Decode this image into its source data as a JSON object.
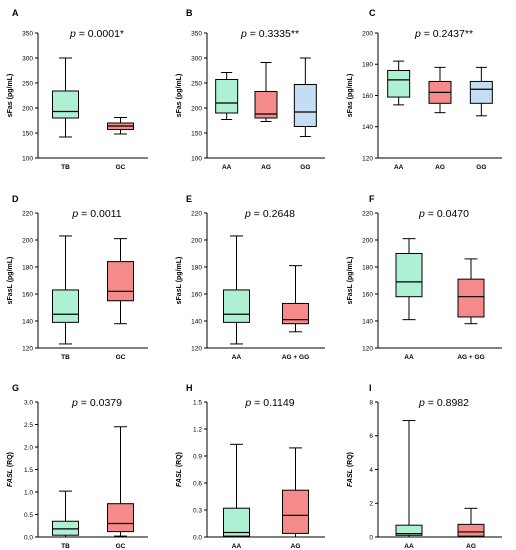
{
  "chart_data": [
    {
      "type": "box",
      "panel": "A",
      "pvalue": "p = 0.0001*",
      "ylabel": "sFas (pg/mL)",
      "ylim": [
        100,
        350
      ],
      "yticks": [
        100,
        150,
        200,
        250,
        300,
        350
      ],
      "yticklabels": [
        "100",
        "150",
        "200",
        "250",
        "300",
        "350"
      ],
      "categories": [
        "TB",
        "GC"
      ],
      "boxes": [
        {
          "category": "TB",
          "min": 142,
          "q1": 180,
          "median": 193,
          "q3": 234,
          "max": 300,
          "color": "#aef0d4"
        },
        {
          "category": "GC",
          "min": 148,
          "q1": 157,
          "median": 164,
          "q3": 170,
          "max": 181,
          "color": "#f48a8a"
        }
      ]
    },
    {
      "type": "box",
      "panel": "B",
      "pvalue": "p = 0.3335**",
      "ylabel": "sFas (pg/mL)",
      "ylim": [
        100,
        350
      ],
      "yticks": [
        100,
        150,
        200,
        250,
        300,
        350
      ],
      "yticklabels": [
        "100",
        "150",
        "200",
        "250",
        "300",
        "350"
      ],
      "categories": [
        "AA",
        "AG",
        "GG"
      ],
      "boxes": [
        {
          "category": "AA",
          "min": 177,
          "q1": 190,
          "median": 210,
          "q3": 257,
          "max": 271,
          "color": "#aef0d4"
        },
        {
          "category": "AG",
          "min": 173,
          "q1": 180,
          "median": 188,
          "q3": 233,
          "max": 291,
          "color": "#f48a8a"
        },
        {
          "category": "GG",
          "min": 143,
          "q1": 163,
          "median": 192,
          "q3": 247,
          "max": 300,
          "color": "#c4dcf4"
        }
      ]
    },
    {
      "type": "box",
      "panel": "C",
      "pvalue": "p = 0.2437**",
      "ylabel": "sFas (pg/mL)",
      "ylim": [
        120,
        200
      ],
      "yticks": [
        120,
        140,
        160,
        180,
        200
      ],
      "yticklabels": [
        "120",
        "140",
        "160",
        "180",
        "200"
      ],
      "categories": [
        "AA",
        "AG",
        "GG"
      ],
      "boxes": [
        {
          "category": "AA",
          "min": 154,
          "q1": 159,
          "median": 170,
          "q3": 176,
          "max": 182,
          "color": "#aef0d4"
        },
        {
          "category": "AG",
          "min": 149,
          "q1": 155,
          "median": 162,
          "q3": 169,
          "max": 178,
          "color": "#f48a8a"
        },
        {
          "category": "GG",
          "min": 147,
          "q1": 155,
          "median": 164,
          "q3": 169,
          "max": 178,
          "color": "#c4dcf4"
        }
      ]
    },
    {
      "type": "box",
      "panel": "D",
      "pvalue": "p = 0.0011",
      "ylabel": "sFasL (pg/mL)",
      "ylim": [
        120,
        220
      ],
      "yticks": [
        120,
        140,
        160,
        180,
        200,
        220
      ],
      "yticklabels": [
        "120",
        "140",
        "160",
        "180",
        "200",
        "220"
      ],
      "categories": [
        "TB",
        "GC"
      ],
      "boxes": [
        {
          "category": "TB",
          "min": 123,
          "q1": 139,
          "median": 145,
          "q3": 163,
          "max": 203,
          "color": "#aef0d4"
        },
        {
          "category": "GC",
          "min": 138,
          "q1": 155,
          "median": 162,
          "q3": 184,
          "max": 201,
          "color": "#f48a8a"
        }
      ]
    },
    {
      "type": "box",
      "panel": "E",
      "pvalue": "p = 0.2648",
      "ylabel": "sFasL (pg/mL)",
      "ylim": [
        120,
        220
      ],
      "yticks": [
        120,
        140,
        160,
        180,
        200,
        220
      ],
      "yticklabels": [
        "120",
        "140",
        "160",
        "180",
        "200",
        "220"
      ],
      "categories": [
        "AA",
        "AG + GG"
      ],
      "boxes": [
        {
          "category": "AA",
          "min": 123,
          "q1": 139,
          "median": 145,
          "q3": 163,
          "max": 203,
          "color": "#aef0d4"
        },
        {
          "category": "AG + GG",
          "min": 132,
          "q1": 138,
          "median": 141,
          "q3": 153,
          "max": 181,
          "color": "#f48a8a"
        }
      ]
    },
    {
      "type": "box",
      "panel": "F",
      "pvalue": "p = 0.0470",
      "ylabel": "sFasL (pg/mL)",
      "ylim": [
        120,
        220
      ],
      "yticks": [
        120,
        140,
        160,
        180,
        200,
        220
      ],
      "yticklabels": [
        "120",
        "140",
        "160",
        "180",
        "200",
        "220"
      ],
      "categories": [
        "AA",
        "AG + GG"
      ],
      "boxes": [
        {
          "category": "AA",
          "min": 141,
          "q1": 158,
          "median": 169,
          "q3": 190,
          "max": 201,
          "color": "#aef0d4"
        },
        {
          "category": "AG + GG",
          "min": 138,
          "q1": 143,
          "median": 158,
          "q3": 171,
          "max": 186,
          "color": "#f48a8a"
        }
      ]
    },
    {
      "type": "box",
      "panel": "G",
      "pvalue": "p = 0.0379",
      "ylabel": "FASL (RQ)",
      "ylim": [
        0,
        3.0
      ],
      "yticks": [
        0,
        0.5,
        1.0,
        1.5,
        2.0,
        2.5,
        3.0
      ],
      "yticklabels": [
        "0.0",
        "0.5",
        "1.0",
        "1.5",
        "2.0",
        "2.5",
        "3.0"
      ],
      "categories": [
        "TB",
        "GC"
      ],
      "boxes": [
        {
          "category": "TB",
          "min": 0.0,
          "q1": 0.04,
          "median": 0.18,
          "q3": 0.35,
          "max": 1.02,
          "color": "#aef0d4"
        },
        {
          "category": "GC",
          "min": 0.02,
          "q1": 0.12,
          "median": 0.3,
          "q3": 0.74,
          "max": 2.45,
          "color": "#f48a8a"
        }
      ]
    },
    {
      "type": "box",
      "panel": "H",
      "pvalue": "p = 0.1149",
      "ylabel": "FASL (RQ)",
      "ylim": [
        0,
        1.5
      ],
      "yticks": [
        0,
        0.3,
        0.6,
        0.9,
        1.2,
        1.5
      ],
      "yticklabels": [
        "0.0",
        "0.3",
        "0.6",
        "0.9",
        "1.2",
        "1.5"
      ],
      "categories": [
        "AA",
        "AG"
      ],
      "boxes": [
        {
          "category": "AA",
          "min": 0.0,
          "q1": 0.01,
          "median": 0.05,
          "q3": 0.32,
          "max": 1.03,
          "color": "#aef0d4"
        },
        {
          "category": "AG",
          "min": 0.0,
          "q1": 0.04,
          "median": 0.24,
          "q3": 0.52,
          "max": 0.99,
          "color": "#f48a8a"
        }
      ]
    },
    {
      "type": "box",
      "panel": "I",
      "pvalue": "p = 0.8982",
      "ylabel": "FASL (RQ)",
      "ylim": [
        0,
        8
      ],
      "yticks": [
        0,
        2,
        4,
        6,
        8
      ],
      "yticklabels": [
        "0",
        "2",
        "4",
        "6",
        "8"
      ],
      "categories": [
        "AA",
        "AG"
      ],
      "boxes": [
        {
          "category": "AA",
          "min": 0.0,
          "q1": 0.1,
          "median": 0.2,
          "q3": 0.7,
          "max": 6.9,
          "color": "#aef0d4"
        },
        {
          "category": "AG",
          "min": 0.0,
          "q1": 0.05,
          "median": 0.3,
          "q3": 0.75,
          "max": 1.7,
          "color": "#f48a8a"
        }
      ]
    }
  ]
}
